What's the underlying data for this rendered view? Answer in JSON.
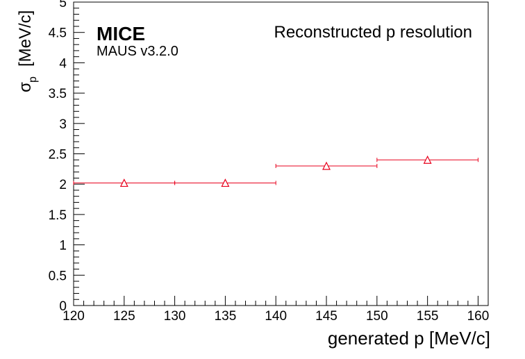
{
  "chart_data": {
    "type": "scatter",
    "title": "Reconstructed p resolution",
    "experiment_label": "MICE",
    "software_label": "MAUS v3.2.0",
    "xlabel": "generated p [MeV/c]",
    "ylabel_symbol": "σ",
    "ylabel_subscript": "p",
    "ylabel_unit": "[MeV/c]",
    "xlim": [
      120,
      161
    ],
    "ylim": [
      0,
      5
    ],
    "x_ticks": [
      120,
      125,
      130,
      135,
      140,
      145,
      150,
      155,
      160
    ],
    "x_tick_labels": [
      "120",
      "125",
      "130",
      "135",
      "140",
      "145",
      "150",
      "155",
      "160"
    ],
    "y_ticks": [
      0,
      0.5,
      1,
      1.5,
      2,
      2.5,
      3,
      3.5,
      4,
      4.5,
      5
    ],
    "y_tick_labels": [
      "0",
      "0.5",
      "1",
      "1.5",
      "2",
      "2.5",
      "3",
      "3.5",
      "4",
      "4.5",
      "5"
    ],
    "marker": "open-triangle",
    "grid": false,
    "series": [
      {
        "x": [
          125,
          135,
          145,
          155
        ],
        "y": [
          2.02,
          2.02,
          2.3,
          2.4
        ],
        "x_err": [
          5,
          5,
          5,
          5
        ],
        "color": "#e8001c"
      }
    ]
  }
}
